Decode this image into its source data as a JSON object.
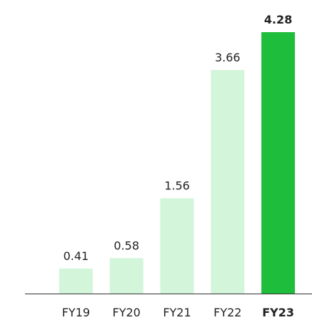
{
  "chart_data": {
    "type": "bar",
    "categories": [
      "FY19",
      "FY20",
      "FY21",
      "FY22",
      "FY23"
    ],
    "values": [
      0.41,
      0.58,
      1.56,
      3.66,
      4.28
    ],
    "colors": [
      "#d3f5da",
      "#d3f5da",
      "#d3f5da",
      "#d3f5da",
      "#1fbd3c"
    ]
  }
}
